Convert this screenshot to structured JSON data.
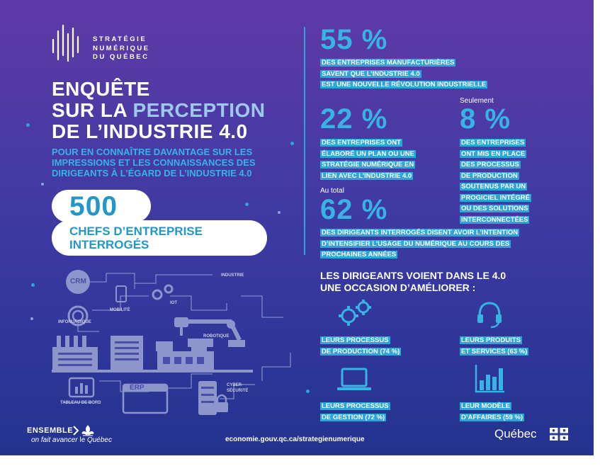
{
  "brand": {
    "line1": "STRATÉGIE",
    "line2": "NUMÉRIQUE",
    "line3": "DU QUÉBEC"
  },
  "title": {
    "line1": "ENQUÊTE",
    "line2_prefix": "SUR LA ",
    "line2_accent": "PERCEPTION",
    "line3": "DE L’INDUSTRIE 4.0",
    "subtitle_line1": "POUR EN CONNAÎTRE DAVANTAGE SUR LES",
    "subtitle_line2": "IMPRESSIONS ET LES CONNAISSANCES DES",
    "subtitle_line3": "DIRIGEANTS À L’ÉGARD DE L’INDUSTRIE 4.0"
  },
  "respondents": {
    "number": "500",
    "label_line1": "CHEFS D’ENTREPRISE",
    "label_line2": "INTERROGÉS"
  },
  "stats": {
    "s1_value": "55 %",
    "s1_line1": "DES ENTREPRISES MANUFACTURIÈRES",
    "s1_line2": "SAVENT QUE L’INDUSTRIE 4.0",
    "s1_line3": "EST UNE NOUVELLE RÉVOLUTION INDUSTRIELLE",
    "s2_value": "22 %",
    "s2_line1": "DES ENTREPRISES ONT",
    "s2_line2": "ÉLABORÉ UN PLAN OU UNE",
    "s2_line3": "STRATÉGIE NUMÉRIQUE EN",
    "s2_line4": "LIEN AVEC L’INDUSTRIE 4.0",
    "s3_prefix": "Seulement",
    "s3_value": "8 %",
    "s3_line1": "DES ENTREPRISES",
    "s3_line2": "ONT MIS EN PLACE",
    "s3_line3": "DES PROCESSUS",
    "s3_line4": "DE PRODUCTION",
    "s3_line5": "SOUTENUS PAR UN",
    "s3_line6": "PROGICIEL INTÉGRÉ",
    "s3_line7": "OU DES SOLUTIONS",
    "s3_line8": "INTERCONNECTÉES",
    "s4_prefix": "Au total",
    "s4_value": "62 %",
    "s4_line1": "DES DIRIGEANTS INTERROGÉS DISENT AVOIR L’INTENTION",
    "s4_line2": "D’INTENSIFIER L’USAGE DU NUMÉRIQUE AU COURS DES",
    "s4_line3": "PROCHAINES ANNÉES"
  },
  "improve": {
    "heading_line1": "LES DIRIGEANTS VOIENT DANS LE 4.0",
    "heading_line2": "UNE OCCASION D’AMÉLIORER :",
    "i1_line1": "LEURS PROCESSUS",
    "i1_line2": "DE PRODUCTION (74 %)",
    "i1_icon": "gears-icon",
    "i2_line1": "LEURS PRODUITS",
    "i2_line2": "ET SERVICES (63 %)",
    "i2_icon": "headset-icon",
    "i3_line1": "LEURS PROCESSUS",
    "i3_line2": "DE GESTION (72 %)",
    "i3_icon": "laptop-icon",
    "i4_line1": "LEUR MODÈLE",
    "i4_line2": "D’AFFAIRES (59 %)",
    "i4_icon": "bar-chart-icon"
  },
  "illustration": {
    "crm": "CRM",
    "industrie": "INDUSTRIE",
    "mobilite": "MOBILITÉ",
    "iot": "IOT",
    "infonuagique": "INFONUAGIQUE",
    "robotique": "ROBOTIQUE",
    "erp": "ERP",
    "tableau": "TABLEAU DE BORD",
    "cyber_line1": "CYBER-",
    "cyber_line2": "SÉCURITÉ"
  },
  "footer": {
    "ensemble": "ENSEMBLE",
    "tagline_italic1": "on fait avancer",
    "tagline_plain": " le ",
    "tagline_italic2": "Québec",
    "url": "economie.gouv.qc.ca/strategienumerique",
    "quebec": "Québec"
  },
  "colors": {
    "accent_blue": "#37b4e4",
    "highlight_blue": "#2aa7d8",
    "bg_top": "#5f3aa6",
    "bg_bottom": "#23338f"
  }
}
